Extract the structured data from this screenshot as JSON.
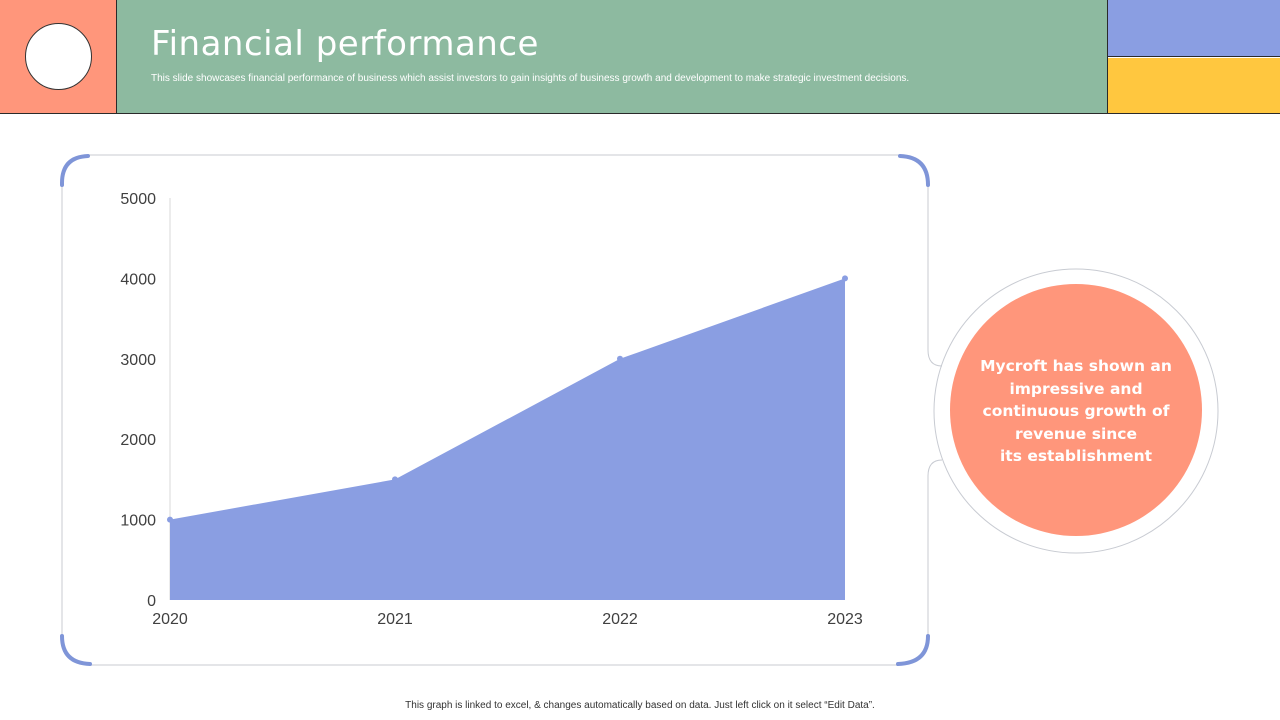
{
  "header": {
    "title": "Financial performance",
    "subtitle": "This slide showcases financial performance of business which assist investors to gain insights of business growth and development to make strategic investment decisions."
  },
  "colors": {
    "accent_salmon": "#ff967b",
    "header_green": "#8dbaa0",
    "accent_blue": "#8a9ee2",
    "accent_yellow": "#ffc73f",
    "frame_corner": "#7f95d8",
    "frame_line": "#c8cbd2"
  },
  "chart_data": {
    "type": "area",
    "x": [
      "2020",
      "2021",
      "2022",
      "2023"
    ],
    "values": [
      1000,
      1500,
      3000,
      4000
    ],
    "ylim": [
      0,
      5000
    ],
    "yticks": [
      0,
      1000,
      2000,
      3000,
      4000,
      5000
    ],
    "title": "",
    "xlabel": "",
    "ylabel": "",
    "grid": false,
    "legend": "none",
    "color": "#8a9ee2"
  },
  "summary": {
    "text": "Mycroft has shown an\nimpressive and\ncontinuous growth of\nrevenue since\nits establishment"
  },
  "footnote": "This graph is linked to excel, & changes automatically based on data. Just left click on it select “Edit Data”."
}
